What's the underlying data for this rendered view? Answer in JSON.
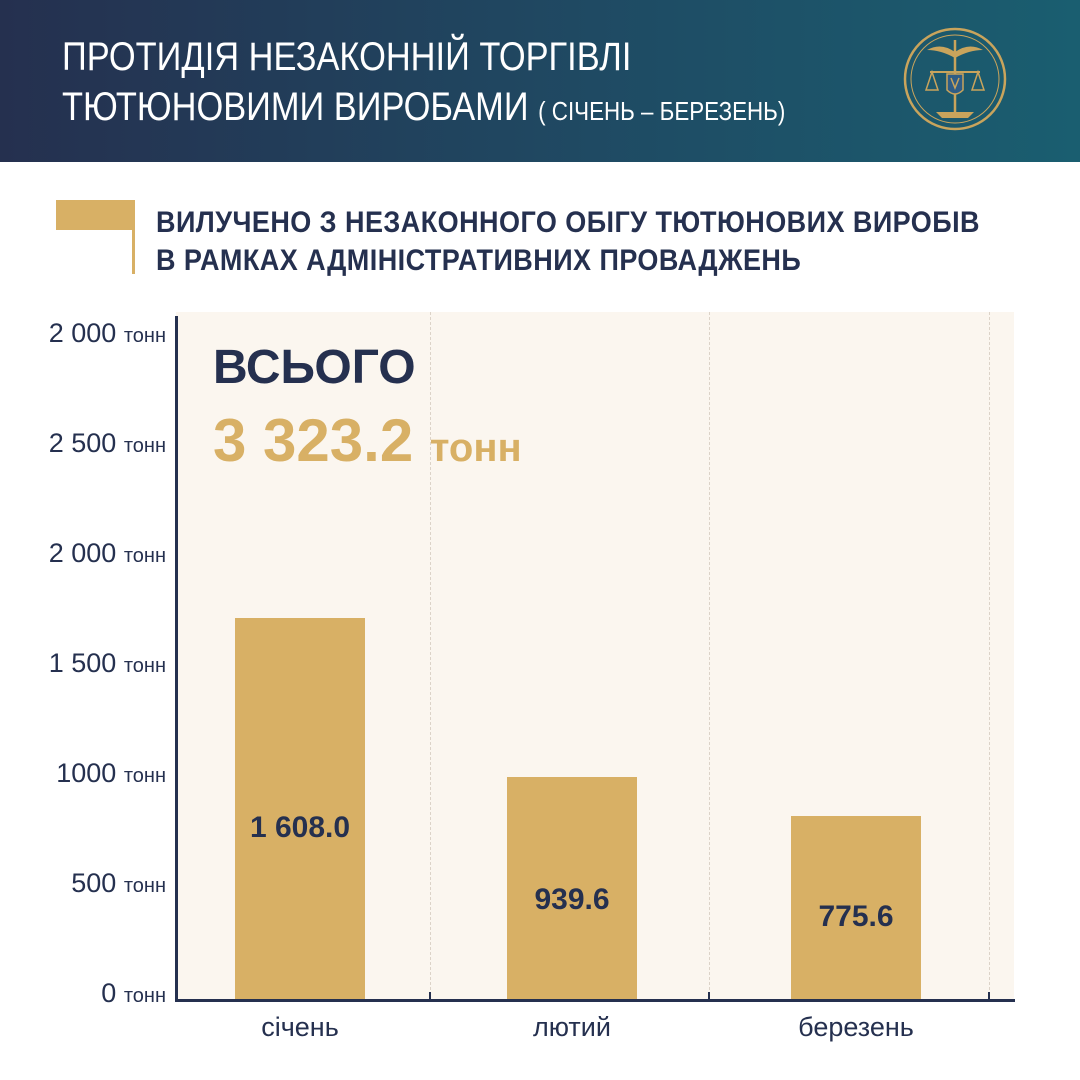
{
  "header": {
    "title_line1": "ПРОТИДІЯ НЕЗАКОННІЙ ТОРГІВЛІ",
    "title_line2": "ТЮТЮНОВИМИ ВИРОБАМИ",
    "period": "( СІЧЕНЬ – БЕРЕЗЕНЬ)",
    "emblem_icon": "customs-emblem-icon"
  },
  "section": {
    "title_line1": "ВИЛУЧЕНО З НЕЗАКОННОГО ОБІГУ ТЮТЮНОВИХ ВИРОБІВ",
    "title_line2": "В РАМКАХ АДМІНІСТРАТИВНИХ ПРОВАДЖЕНЬ"
  },
  "total": {
    "label": "ВСЬОГО",
    "value": "3 323.2",
    "unit": "тонн"
  },
  "colors": {
    "navy": "#25304f",
    "gold": "#d8b065",
    "plot_background": "#fbf6ef"
  },
  "chart_data": {
    "type": "bar",
    "categories": [
      "січень",
      "лютий",
      "березень"
    ],
    "values": [
      1608.0,
      939.6,
      775.6
    ],
    "value_labels": [
      "1 608.0",
      "939.6",
      "775.6"
    ],
    "y_ticks": [
      {
        "number": "2 000",
        "unit": "тонн"
      },
      {
        "number": "2 500",
        "unit": "тонн"
      },
      {
        "number": "2 000",
        "unit": "тонн"
      },
      {
        "number": "1 500",
        "unit": "тонн"
      },
      {
        "number": "1000",
        "unit": "тонн"
      },
      {
        "number": "500",
        "unit": "тонн"
      },
      {
        "number": "0",
        "unit": "тонн"
      }
    ],
    "ylim": [
      0,
      3000
    ],
    "grid": "vertical dashed",
    "title": "",
    "xlabel": "",
    "ylabel": ""
  }
}
